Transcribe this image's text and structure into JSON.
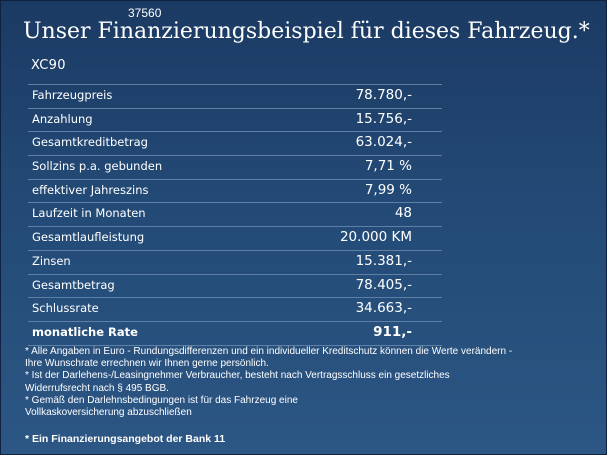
{
  "code": "37560",
  "title": "Unser Finanzierungsbeispiel für dieses Fahrzeug.*",
  "model": "XC90",
  "rows": [
    {
      "label": "Fahrzeugpreis",
      "value": "78.780,-"
    },
    {
      "label": "Anzahlung",
      "value": "15.756,-"
    },
    {
      "label": "Gesamtkreditbetrag",
      "value": "63.024,-"
    },
    {
      "label": "Sollzins p.a. gebunden",
      "value": "7,71 %"
    },
    {
      "label": "effektiver Jahreszins",
      "value": "7,99 %"
    },
    {
      "label": "Laufzeit in Monaten",
      "value": "48"
    },
    {
      "label": "Gesamtlaufleistung",
      "value": "20.000 KM"
    },
    {
      "label": "Zinsen",
      "value": "15.381,-"
    },
    {
      "label": "Gesamtbetrag",
      "value": "78.405,-"
    },
    {
      "label": "Schlussrate",
      "value": "34.663,-"
    },
    {
      "label": "monatliche Rate",
      "value": "911,-"
    }
  ],
  "notes": [
    "* Alle Angaben in Euro - Rundungsdifferenzen und ein individueller Kreditschutz können die Werte verändern -",
    "  Ihre Wunschrate errechnen wir Ihnen gerne persönlich.",
    "* Ist der Darlehens-/Leasingnehmer Verbraucher, besteht nach Vertragsschluss ein gesetzliches",
    "  Widerrufsrecht   nach § 495 BGB.",
    "* Gemäß den Darlehnsbedingungen ist für das Fahrzeug eine",
    "  Vollkaskoversicherung abzuschließen"
  ],
  "offer": "* Ein Finanzierungsangebot der Bank 11"
}
